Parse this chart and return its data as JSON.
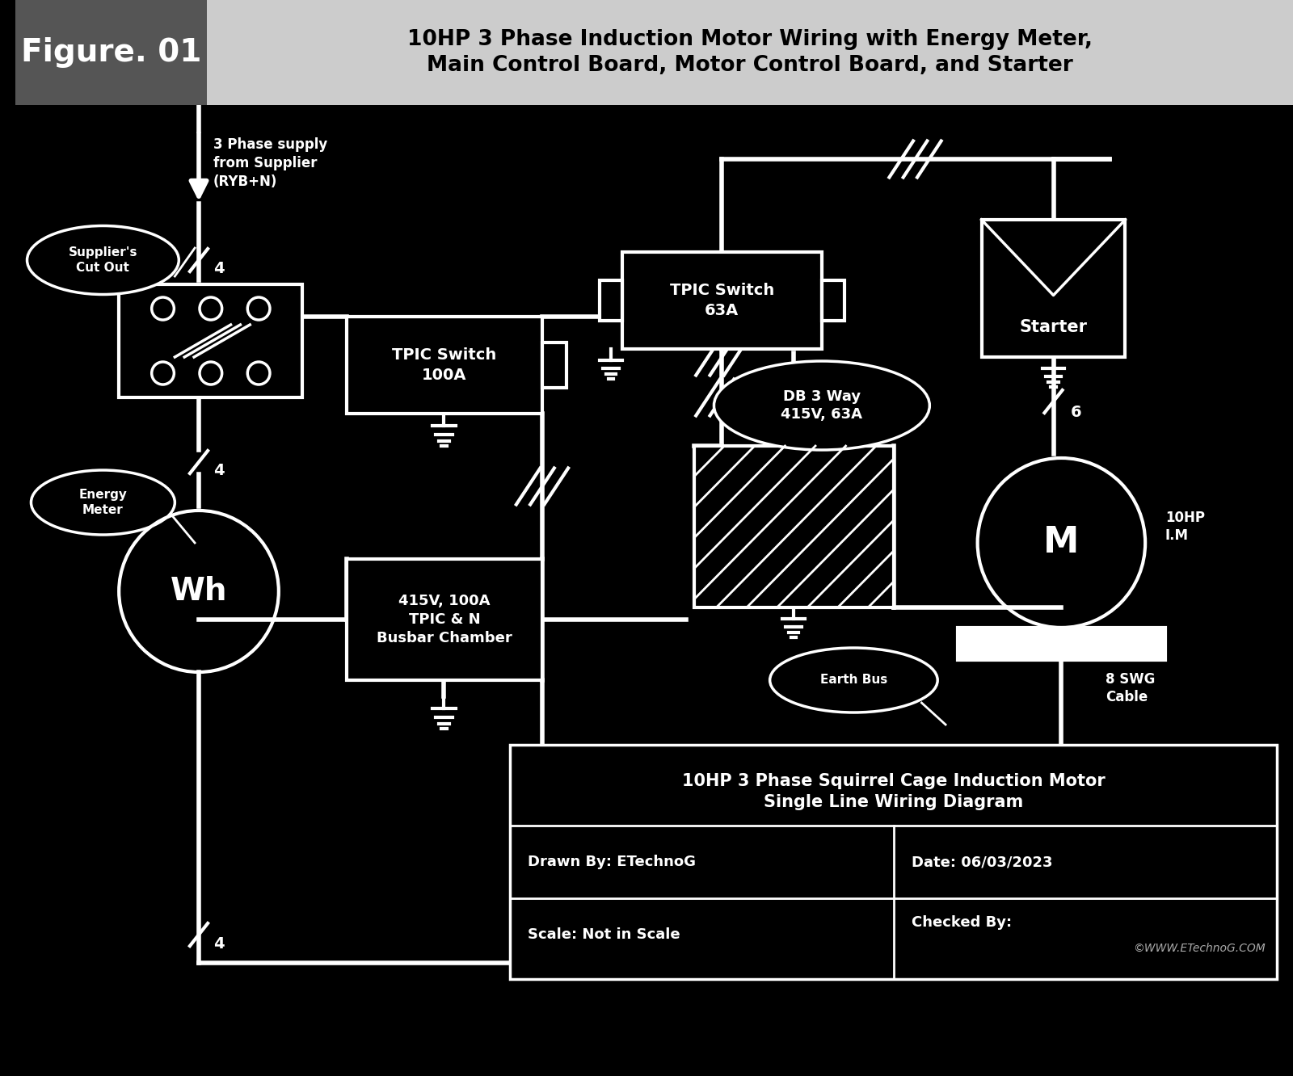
{
  "bg_color": "#000000",
  "fg_color": "#ffffff",
  "header_grey": "#555555",
  "header_light": "#cccccc",
  "title_fig": "Figure. 01",
  "title_main": "10HP 3 Phase Induction Motor Wiring with Energy Meter,\nMain Control Board, Motor Control Board, and Starter",
  "diagram_title": "10HP 3 Phase Squirrel Cage Induction Motor\nSingle Line Wiring Diagram",
  "drawn_by": "Drawn By: ETechnoG",
  "date": "Date: 06/03/2023",
  "scale": "Scale: Not in Scale",
  "checked": "Checked By:",
  "copyright": "©WWW.ETechnoG.COM",
  "watermark": "©WWW.ETechnoG.COM",
  "supply_label": "3 Phase supply\nfrom Supplier\n(RYB+N)",
  "suppliers_cutout": "Supplier's\nCut Out",
  "energy_meter_lbl": "Energy\nMeter",
  "wh_label": "Wh",
  "tpic_100a": "TPIC Switch\n100A",
  "busbar_label": "415V, 100A\nTPIC & N\nBusbar Chamber",
  "tpic_63a": "TPIC Switch\n63A",
  "db_label": "DB 3 Way\n415V, 63A",
  "starter_label": "Starter",
  "motor_label": "M",
  "motor_hp": "10HP\nI.M",
  "earth_bus": "Earth Bus",
  "swg_cable": "8 SWG\nCable",
  "lbl4a": "4",
  "lbl4b": "4",
  "lbl4c": "4",
  "lbl6": "6"
}
